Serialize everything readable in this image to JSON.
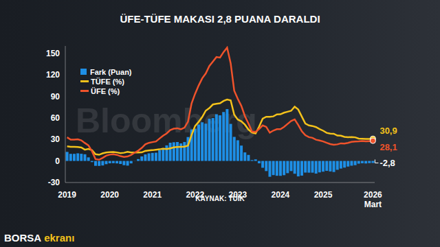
{
  "chart_data": {
    "type": "line",
    "title": "ÜFE-TÜFE MAKASI 2,8 PUANA DARALDI",
    "source": "KAYNAK: TÜİK",
    "logo": "BORSA ekranı",
    "watermark": "Bloomberg",
    "categories": [
      "2019",
      null,
      null,
      null,
      null,
      null,
      null,
      null,
      null,
      null,
      null,
      null,
      "2020",
      null,
      null,
      null,
      null,
      null,
      null,
      null,
      null,
      null,
      null,
      null,
      "2021",
      null,
      null,
      null,
      null,
      null,
      null,
      null,
      null,
      null,
      null,
      null,
      "2022",
      null,
      null,
      null,
      null,
      null,
      null,
      null,
      null,
      null,
      null,
      null,
      "2023",
      null,
      null,
      null,
      null,
      null,
      null,
      null,
      null,
      null,
      null,
      null,
      "2024",
      null,
      null,
      null,
      null,
      null,
      null,
      null,
      null,
      null,
      null,
      null,
      "2025",
      null,
      null,
      null,
      null,
      null,
      null,
      null,
      null,
      null,
      null,
      null,
      null,
      null,
      "2026 Mart"
    ],
    "series": [
      {
        "name": "Fark (Puan)",
        "type": "bar",
        "color": "#1e8fe6",
        "values": [
          12.6,
          9.9,
          9.9,
          10.6,
          10.0,
          9.3,
          5.0,
          -1.6,
          -6.8,
          -6.9,
          -6.3,
          -4.5,
          -3.3,
          -3.1,
          -3.4,
          -4.2,
          -5.9,
          -6.5,
          -3.4,
          -0.2,
          2.6,
          6.3,
          9.1,
          10.6,
          11.2,
          11.5,
          15.0,
          18.0,
          21.7,
          25.4,
          26.0,
          26.3,
          24.4,
          26.4,
          33.3,
          43.8,
          44.8,
          50.6,
          53.8,
          51.9,
          58.7,
          59.7,
          65.0,
          63.5,
          68.1,
          72.2,
          51.6,
          33.5,
          28.8,
          21.4,
          11.9,
          8.4,
          1.2,
          2.2,
          -3.3,
          -9.5,
          -14.1,
          -22.0,
          -19.7,
          -20.6,
          -20.7,
          -19.8,
          -17.0,
          -14.1,
          -17.8,
          -21.5,
          -20.4,
          -16.2,
          -16.3,
          -16.3,
          -17.6,
          -15.9,
          -14.9,
          -13.8,
          -14.6,
          -15.4,
          -12.3,
          -10.6,
          -9.3,
          -7.8,
          -6.7,
          -5.9,
          -3.8,
          -3.2,
          -3.5,
          -3.0,
          -2.8
        ]
      },
      {
        "name": "TÜFE (%)",
        "type": "line",
        "color": "#f4c21b",
        "values": [
          20.4,
          19.7,
          19.7,
          19.5,
          18.7,
          15.7,
          16.7,
          15.0,
          9.3,
          8.6,
          10.6,
          11.8,
          12.2,
          12.4,
          11.9,
          10.9,
          11.4,
          12.6,
          11.8,
          11.8,
          11.8,
          11.9,
          14.0,
          14.6,
          15.0,
          15.6,
          16.2,
          17.1,
          16.6,
          17.5,
          19.0,
          19.3,
          19.6,
          19.9,
          21.3,
          36.1,
          48.7,
          54.4,
          61.1,
          70.0,
          73.5,
          78.6,
          79.6,
          80.2,
          83.5,
          85.5,
          84.4,
          64.3,
          57.7,
          55.2,
          50.5,
          43.7,
          39.6,
          38.2,
          47.8,
          58.9,
          61.5,
          61.4,
          62.0,
          64.8,
          64.9,
          67.1,
          68.5,
          69.8,
          75.5,
          71.6,
          61.8,
          52.0,
          49.4,
          48.6,
          47.1,
          44.4,
          42.1,
          39.1,
          38.1,
          37.9,
          35.4,
          35.1,
          33.5,
          33.0,
          33.3,
          32.9,
          31.1,
          30.9,
          30.7,
          30.6,
          30.9
        ]
      },
      {
        "name": "ÜFE (%)",
        "type": "line",
        "color": "#f0532b",
        "values": [
          32.9,
          29.6,
          29.6,
          30.1,
          28.7,
          25.0,
          21.7,
          13.5,
          2.5,
          1.7,
          4.3,
          7.4,
          8.8,
          9.3,
          8.5,
          6.7,
          5.5,
          6.2,
          8.3,
          11.5,
          14.3,
          18.2,
          23.1,
          25.2,
          26.2,
          27.1,
          31.2,
          35.2,
          38.3,
          42.9,
          44.9,
          45.5,
          44.0,
          46.3,
          54.6,
          79.9,
          93.5,
          105.0,
          115.0,
          121.8,
          132.2,
          138.3,
          144.6,
          143.8,
          151.5,
          157.7,
          136.0,
          97.7,
          86.5,
          76.6,
          62.4,
          52.1,
          40.8,
          40.4,
          44.5,
          49.4,
          47.4,
          39.4,
          42.3,
          44.2,
          44.2,
          47.3,
          51.5,
          55.7,
          57.7,
          50.1,
          41.4,
          35.8,
          33.1,
          32.2,
          29.5,
          28.5,
          27.2,
          25.2,
          23.5,
          22.5,
          23.1,
          24.5,
          24.2,
          25.2,
          26.6,
          27.0,
          27.2,
          27.7,
          27.2,
          27.6,
          28.1
        ]
      }
    ],
    "annotations": [
      {
        "text": "30,9",
        "series": "TÜFE (%)"
      },
      {
        "text": "28,1",
        "series": "ÜFE (%)"
      },
      {
        "text": "-2,8",
        "series": "Fark (Puan)"
      }
    ],
    "ylim": [
      -30,
      160
    ],
    "yticks": [
      -30,
      0,
      30,
      60,
      90,
      120,
      150
    ],
    "grid": false,
    "legend": "upper left"
  }
}
